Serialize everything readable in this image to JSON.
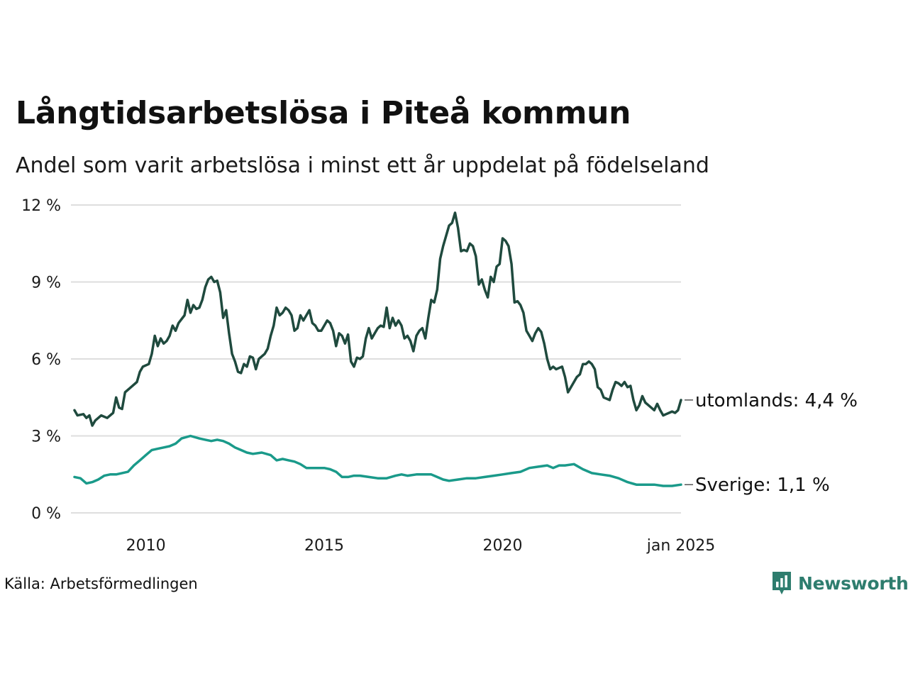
{
  "title": "Långtidsarbetslösa i Piteå kommun",
  "subtitle": "Andel som varit arbetslösa i minst ett år uppdelat på födelseland",
  "source": "Källa: Arbetsförmedlingen",
  "brand": {
    "name": "Newsworthy",
    "color": "#2e7d6e",
    "icon": "bar-chart-bubble-icon"
  },
  "chart_data": {
    "type": "line",
    "x_range": [
      "2008-01",
      "2025-01"
    ],
    "x_ticks": [
      {
        "date": "2010-01",
        "label": "2010"
      },
      {
        "date": "2015-01",
        "label": "2015"
      },
      {
        "date": "2020-01",
        "label": "2020"
      },
      {
        "date": "2025-01",
        "label": "jan 2025"
      }
    ],
    "ylim": [
      0,
      12
    ],
    "y_ticks": [
      {
        "value": 0,
        "label": "0 %"
      },
      {
        "value": 3,
        "label": "3 %"
      },
      {
        "value": 6,
        "label": "6 %"
      },
      {
        "value": 9,
        "label": "9 %"
      },
      {
        "value": 12,
        "label": "12 %"
      }
    ],
    "grid": true,
    "legend": "end-of-line labels",
    "series": [
      {
        "key": "foreign",
        "color": "#1f4a3e",
        "end_label": "utomlands: 4,4 %",
        "points": [
          [
            "2008-01",
            4.0
          ],
          [
            "2008-02",
            3.8
          ],
          [
            "2008-04",
            3.85
          ],
          [
            "2008-05",
            3.7
          ],
          [
            "2008-06",
            3.8
          ],
          [
            "2008-07",
            3.4
          ],
          [
            "2008-08",
            3.6
          ],
          [
            "2008-10",
            3.8
          ],
          [
            "2008-12",
            3.7
          ],
          [
            "2009-02",
            3.9
          ],
          [
            "2009-03",
            4.5
          ],
          [
            "2009-04",
            4.1
          ],
          [
            "2009-05",
            4.05
          ],
          [
            "2009-06",
            4.7
          ],
          [
            "2009-08",
            4.9
          ],
          [
            "2009-10",
            5.1
          ],
          [
            "2009-11",
            5.5
          ],
          [
            "2009-12",
            5.7
          ],
          [
            "2010-02",
            5.8
          ],
          [
            "2010-03",
            6.2
          ],
          [
            "2010-04",
            6.9
          ],
          [
            "2010-05",
            6.5
          ],
          [
            "2010-06",
            6.8
          ],
          [
            "2010-07",
            6.6
          ],
          [
            "2010-08",
            6.7
          ],
          [
            "2010-09",
            6.9
          ],
          [
            "2010-10",
            7.3
          ],
          [
            "2010-11",
            7.1
          ],
          [
            "2010-12",
            7.4
          ],
          [
            "2011-02",
            7.7
          ],
          [
            "2011-03",
            8.3
          ],
          [
            "2011-04",
            7.8
          ],
          [
            "2011-05",
            8.1
          ],
          [
            "2011-06",
            7.95
          ],
          [
            "2011-07",
            8.0
          ],
          [
            "2011-08",
            8.3
          ],
          [
            "2011-09",
            8.8
          ],
          [
            "2011-10",
            9.1
          ],
          [
            "2011-11",
            9.2
          ],
          [
            "2011-12",
            9.0
          ],
          [
            "2012-01",
            9.05
          ],
          [
            "2012-02",
            8.6
          ],
          [
            "2012-03",
            7.6
          ],
          [
            "2012-04",
            7.9
          ],
          [
            "2012-05",
            7.0
          ],
          [
            "2012-06",
            6.2
          ],
          [
            "2012-07",
            5.9
          ],
          [
            "2012-08",
            5.5
          ],
          [
            "2012-09",
            5.45
          ],
          [
            "2012-10",
            5.8
          ],
          [
            "2012-11",
            5.7
          ],
          [
            "2012-12",
            6.1
          ],
          [
            "2013-01",
            6.05
          ],
          [
            "2013-02",
            5.6
          ],
          [
            "2013-03",
            6.0
          ],
          [
            "2013-05",
            6.2
          ],
          [
            "2013-06",
            6.4
          ],
          [
            "2013-07",
            6.9
          ],
          [
            "2013-08",
            7.3
          ],
          [
            "2013-09",
            8.0
          ],
          [
            "2013-10",
            7.7
          ],
          [
            "2013-11",
            7.8
          ],
          [
            "2013-12",
            8.0
          ],
          [
            "2014-01",
            7.9
          ],
          [
            "2014-02",
            7.7
          ],
          [
            "2014-03",
            7.1
          ],
          [
            "2014-04",
            7.2
          ],
          [
            "2014-05",
            7.7
          ],
          [
            "2014-06",
            7.5
          ],
          [
            "2014-07",
            7.7
          ],
          [
            "2014-08",
            7.9
          ],
          [
            "2014-09",
            7.4
          ],
          [
            "2014-10",
            7.3
          ],
          [
            "2014-11",
            7.1
          ],
          [
            "2014-12",
            7.1
          ],
          [
            "2015-01",
            7.3
          ],
          [
            "2015-02",
            7.5
          ],
          [
            "2015-03",
            7.4
          ],
          [
            "2015-04",
            7.1
          ],
          [
            "2015-05",
            6.5
          ],
          [
            "2015-06",
            7.0
          ],
          [
            "2015-07",
            6.9
          ],
          [
            "2015-08",
            6.6
          ],
          [
            "2015-09",
            6.95
          ],
          [
            "2015-10",
            5.9
          ],
          [
            "2015-11",
            5.7
          ],
          [
            "2015-12",
            6.05
          ],
          [
            "2016-01",
            6.0
          ],
          [
            "2016-02",
            6.1
          ],
          [
            "2016-03",
            6.8
          ],
          [
            "2016-04",
            7.2
          ],
          [
            "2016-05",
            6.8
          ],
          [
            "2016-06",
            7.0
          ],
          [
            "2016-07",
            7.2
          ],
          [
            "2016-08",
            7.3
          ],
          [
            "2016-09",
            7.25
          ],
          [
            "2016-10",
            8.0
          ],
          [
            "2016-11",
            7.2
          ],
          [
            "2016-12",
            7.6
          ],
          [
            "2017-01",
            7.3
          ],
          [
            "2017-02",
            7.5
          ],
          [
            "2017-03",
            7.3
          ],
          [
            "2017-04",
            6.8
          ],
          [
            "2017-05",
            6.9
          ],
          [
            "2017-06",
            6.7
          ],
          [
            "2017-07",
            6.3
          ],
          [
            "2017-08",
            6.9
          ],
          [
            "2017-09",
            7.1
          ],
          [
            "2017-10",
            7.2
          ],
          [
            "2017-11",
            6.8
          ],
          [
            "2017-12",
            7.6
          ],
          [
            "2018-01",
            8.3
          ],
          [
            "2018-02",
            8.2
          ],
          [
            "2018-03",
            8.7
          ],
          [
            "2018-04",
            9.9
          ],
          [
            "2018-05",
            10.4
          ],
          [
            "2018-06",
            10.8
          ],
          [
            "2018-07",
            11.2
          ],
          [
            "2018-08",
            11.3
          ],
          [
            "2018-09",
            11.7
          ],
          [
            "2018-10",
            11.1
          ],
          [
            "2018-11",
            10.2
          ],
          [
            "2018-12",
            10.25
          ],
          [
            "2019-01",
            10.2
          ],
          [
            "2019-02",
            10.5
          ],
          [
            "2019-03",
            10.4
          ],
          [
            "2019-04",
            10.0
          ],
          [
            "2019-05",
            8.9
          ],
          [
            "2019-06",
            9.1
          ],
          [
            "2019-07",
            8.7
          ],
          [
            "2019-08",
            8.4
          ],
          [
            "2019-09",
            9.2
          ],
          [
            "2019-10",
            9.0
          ],
          [
            "2019-11",
            9.6
          ],
          [
            "2019-12",
            9.7
          ],
          [
            "2020-01",
            10.7
          ],
          [
            "2020-02",
            10.6
          ],
          [
            "2020-03",
            10.4
          ],
          [
            "2020-04",
            9.7
          ],
          [
            "2020-05",
            8.2
          ],
          [
            "2020-06",
            8.25
          ],
          [
            "2020-07",
            8.1
          ],
          [
            "2020-08",
            7.8
          ],
          [
            "2020-09",
            7.1
          ],
          [
            "2020-10",
            6.9
          ],
          [
            "2020-11",
            6.7
          ],
          [
            "2020-12",
            7.0
          ],
          [
            "2021-01",
            7.2
          ],
          [
            "2021-02",
            7.05
          ],
          [
            "2021-03",
            6.6
          ],
          [
            "2021-04",
            6.0
          ],
          [
            "2021-05",
            5.6
          ],
          [
            "2021-06",
            5.7
          ],
          [
            "2021-07",
            5.6
          ],
          [
            "2021-08",
            5.65
          ],
          [
            "2021-09",
            5.7
          ],
          [
            "2021-10",
            5.3
          ],
          [
            "2021-11",
            4.7
          ],
          [
            "2021-12",
            4.9
          ],
          [
            "2022-02",
            5.3
          ],
          [
            "2022-03",
            5.4
          ],
          [
            "2022-04",
            5.8
          ],
          [
            "2022-05",
            5.8
          ],
          [
            "2022-06",
            5.9
          ],
          [
            "2022-07",
            5.8
          ],
          [
            "2022-08",
            5.6
          ],
          [
            "2022-09",
            4.9
          ],
          [
            "2022-10",
            4.8
          ],
          [
            "2022-11",
            4.5
          ],
          [
            "2023-01",
            4.4
          ],
          [
            "2023-02",
            4.8
          ],
          [
            "2023-03",
            5.1
          ],
          [
            "2023-04",
            5.05
          ],
          [
            "2023-05",
            4.95
          ],
          [
            "2023-06",
            5.1
          ],
          [
            "2023-07",
            4.9
          ],
          [
            "2023-08",
            4.95
          ],
          [
            "2023-09",
            4.4
          ],
          [
            "2023-10",
            4.0
          ],
          [
            "2023-11",
            4.2
          ],
          [
            "2023-12",
            4.55
          ],
          [
            "2024-01",
            4.3
          ],
          [
            "2024-02",
            4.2
          ],
          [
            "2024-03",
            4.1
          ],
          [
            "2024-04",
            4.0
          ],
          [
            "2024-05",
            4.25
          ],
          [
            "2024-06",
            4.0
          ],
          [
            "2024-07",
            3.8
          ],
          [
            "2024-08",
            3.85
          ],
          [
            "2024-09",
            3.9
          ],
          [
            "2024-10",
            3.95
          ],
          [
            "2024-11",
            3.9
          ],
          [
            "2024-12",
            4.0
          ],
          [
            "2025-01",
            4.4
          ]
        ]
      },
      {
        "key": "sweden",
        "color": "#1a9a8a",
        "end_label": "Sverige: 1,1 %",
        "points": [
          [
            "2008-01",
            1.4
          ],
          [
            "2008-03",
            1.35
          ],
          [
            "2008-05",
            1.15
          ],
          [
            "2008-07",
            1.2
          ],
          [
            "2008-09",
            1.3
          ],
          [
            "2008-11",
            1.45
          ],
          [
            "2009-01",
            1.5
          ],
          [
            "2009-03",
            1.5
          ],
          [
            "2009-05",
            1.55
          ],
          [
            "2009-07",
            1.6
          ],
          [
            "2009-09",
            1.85
          ],
          [
            "2009-11",
            2.05
          ],
          [
            "2010-01",
            2.25
          ],
          [
            "2010-03",
            2.45
          ],
          [
            "2010-05",
            2.5
          ],
          [
            "2010-07",
            2.55
          ],
          [
            "2010-09",
            2.6
          ],
          [
            "2010-11",
            2.7
          ],
          [
            "2011-01",
            2.9
          ],
          [
            "2011-04",
            3.0
          ],
          [
            "2011-07",
            2.9
          ],
          [
            "2011-09",
            2.85
          ],
          [
            "2011-11",
            2.8
          ],
          [
            "2012-01",
            2.85
          ],
          [
            "2012-03",
            2.8
          ],
          [
            "2012-05",
            2.7
          ],
          [
            "2012-07",
            2.55
          ],
          [
            "2012-09",
            2.45
          ],
          [
            "2012-11",
            2.35
          ],
          [
            "2013-01",
            2.3
          ],
          [
            "2013-04",
            2.35
          ],
          [
            "2013-07",
            2.25
          ],
          [
            "2013-09",
            2.05
          ],
          [
            "2013-11",
            2.1
          ],
          [
            "2014-01",
            2.05
          ],
          [
            "2014-03",
            2.0
          ],
          [
            "2014-05",
            1.9
          ],
          [
            "2014-07",
            1.75
          ],
          [
            "2014-09",
            1.75
          ],
          [
            "2014-11",
            1.75
          ],
          [
            "2015-01",
            1.75
          ],
          [
            "2015-03",
            1.7
          ],
          [
            "2015-05",
            1.6
          ],
          [
            "2015-07",
            1.4
          ],
          [
            "2015-09",
            1.4
          ],
          [
            "2015-11",
            1.45
          ],
          [
            "2016-01",
            1.45
          ],
          [
            "2016-04",
            1.4
          ],
          [
            "2016-07",
            1.35
          ],
          [
            "2016-10",
            1.35
          ],
          [
            "2017-01",
            1.45
          ],
          [
            "2017-03",
            1.5
          ],
          [
            "2017-05",
            1.45
          ],
          [
            "2017-08",
            1.5
          ],
          [
            "2017-11",
            1.5
          ],
          [
            "2018-01",
            1.5
          ],
          [
            "2018-03",
            1.4
          ],
          [
            "2018-05",
            1.3
          ],
          [
            "2018-07",
            1.25
          ],
          [
            "2018-10",
            1.3
          ],
          [
            "2019-01",
            1.35
          ],
          [
            "2019-04",
            1.35
          ],
          [
            "2019-07",
            1.4
          ],
          [
            "2019-10",
            1.45
          ],
          [
            "2020-01",
            1.5
          ],
          [
            "2020-04",
            1.55
          ],
          [
            "2020-07",
            1.6
          ],
          [
            "2020-10",
            1.75
          ],
          [
            "2021-01",
            1.8
          ],
          [
            "2021-04",
            1.85
          ],
          [
            "2021-06",
            1.75
          ],
          [
            "2021-08",
            1.85
          ],
          [
            "2021-10",
            1.85
          ],
          [
            "2022-01",
            1.9
          ],
          [
            "2022-04",
            1.7
          ],
          [
            "2022-07",
            1.55
          ],
          [
            "2022-10",
            1.5
          ],
          [
            "2023-01",
            1.45
          ],
          [
            "2023-04",
            1.35
          ],
          [
            "2023-07",
            1.2
          ],
          [
            "2023-10",
            1.1
          ],
          [
            "2024-01",
            1.1
          ],
          [
            "2024-04",
            1.1
          ],
          [
            "2024-07",
            1.05
          ],
          [
            "2024-10",
            1.05
          ],
          [
            "2025-01",
            1.1
          ]
        ]
      }
    ]
  }
}
